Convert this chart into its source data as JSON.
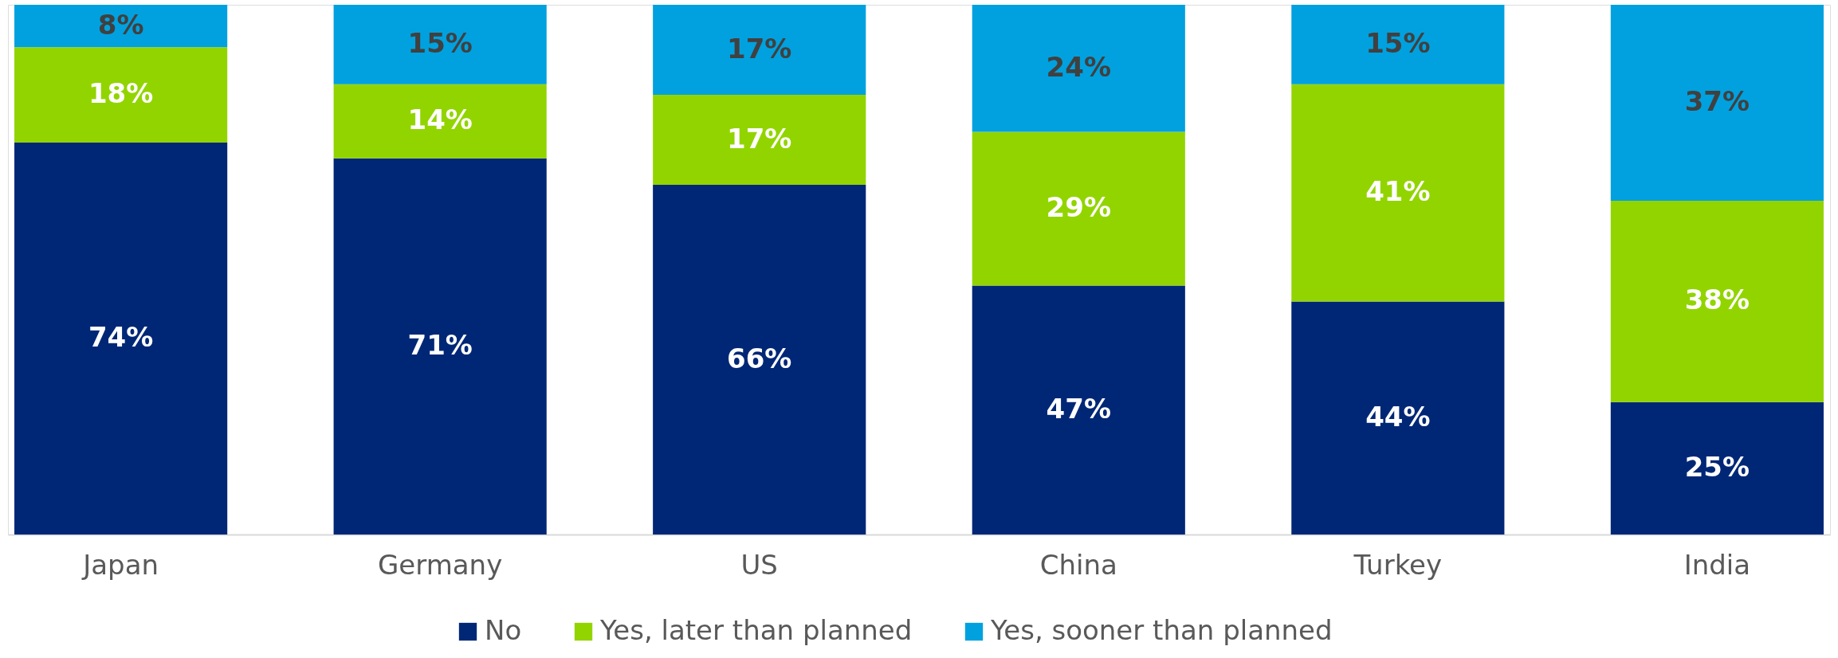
{
  "chart_data": {
    "type": "bar",
    "stacked": true,
    "categories": [
      "Japan",
      "Germany",
      "US",
      "China",
      "Turkey",
      "India"
    ],
    "series": [
      {
        "name": "No",
        "color": "#002776",
        "values": [
          74,
          71,
          66,
          47,
          44,
          25
        ],
        "value_labels": [
          "74%",
          "71%",
          "66%",
          "47%",
          "44%",
          "25%"
        ]
      },
      {
        "name": "Yes, later than planned",
        "color": "#92d400",
        "values": [
          18,
          14,
          17,
          29,
          41,
          38
        ],
        "value_labels": [
          "18%",
          "14%",
          "17%",
          "29%",
          "41%",
          "38%"
        ]
      },
      {
        "name": "Yes, sooner than planned",
        "color": "#00a1de",
        "values": [
          8,
          15,
          17,
          24,
          15,
          37
        ],
        "value_labels": [
          "8%",
          "15%",
          "17%",
          "24%",
          "15%",
          "37%"
        ]
      }
    ],
    "legend": "bottom",
    "tick_labels": "x"
  }
}
